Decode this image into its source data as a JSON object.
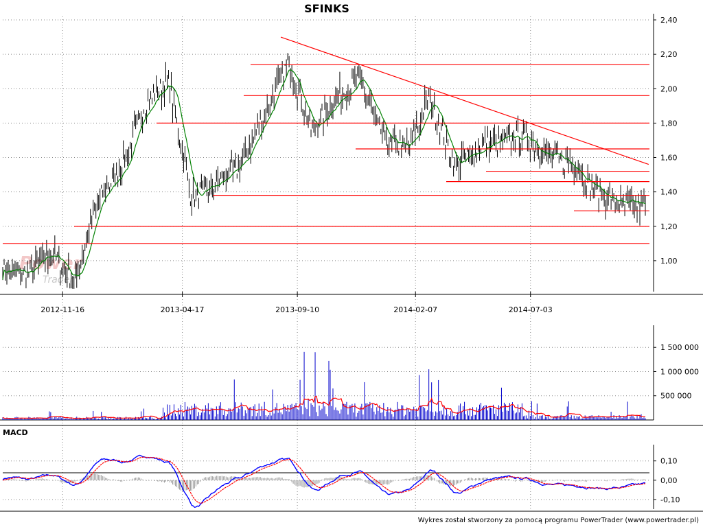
{
  "title": "SFINKS",
  "footer": "Wykres został stworzony za pomocą programu PowerTrader (www.powertrader.pl)",
  "watermark": {
    "line1": "Power",
    "line2": "Trader"
  },
  "panels": {
    "price": {
      "y_ticks": [
        "1,00",
        "1,20",
        "1,40",
        "1,60",
        "1,80",
        "2,00",
        "2,20",
        "2,40"
      ],
      "x_ticks": [
        "2012-11-16",
        "2013-04-17",
        "2013-09-10",
        "2014-02-07",
        "2014-07-03"
      ]
    },
    "volume": {
      "y_ticks": [
        "500 000",
        "1 000 000",
        "1 500 000"
      ]
    },
    "macd": {
      "label": "MACD",
      "y_ticks": [
        "-0,10",
        "0,00",
        "0,10"
      ]
    }
  },
  "colors": {
    "candles": "#000000",
    "moving_average": "#008000",
    "support_resistance": "#ff0000",
    "volume": "#0000cc",
    "macd_line": "#0000ff",
    "signal_line": "#ff0000",
    "histogram": "#999999"
  },
  "chart_data": [
    {
      "type": "line",
      "name": "price",
      "x": [
        "2012-09",
        "2012-10",
        "2012-11",
        "2012-12",
        "2013-01",
        "2013-02",
        "2013-03",
        "2013-04",
        "2013-05",
        "2013-06",
        "2013-07",
        "2013-08",
        "2013-09",
        "2013-10",
        "2013-11",
        "2013-12",
        "2014-01",
        "2014-02",
        "2014-03",
        "2014-04",
        "2014-05",
        "2014-06",
        "2014-07",
        "2014-08",
        "2014-09",
        "2014-10",
        "2014-11"
      ],
      "y": [
        0.95,
        0.92,
        1.05,
        0.88,
        1.35,
        1.55,
        1.9,
        2.05,
        1.35,
        1.45,
        1.55,
        1.85,
        2.15,
        1.75,
        1.95,
        2.05,
        1.7,
        1.65,
        1.95,
        1.55,
        1.65,
        1.7,
        1.72,
        1.6,
        1.55,
        1.4,
        1.32
      ],
      "ylim": [
        0.82,
        2.42
      ],
      "horizontal_levels": [
        2.14,
        1.96,
        1.8,
        1.65,
        1.52,
        1.46,
        1.38,
        1.29,
        1.2,
        1.1
      ],
      "trendline": [
        [
          "2013-08-20",
          2.3
        ],
        [
          "2014-11-30",
          1.56
        ]
      ]
    },
    {
      "type": "bar",
      "name": "volume",
      "ylim": [
        0,
        1900000
      ]
    },
    {
      "type": "line",
      "name": "MACD",
      "ylim": [
        -0.15,
        0.17
      ]
    }
  ]
}
